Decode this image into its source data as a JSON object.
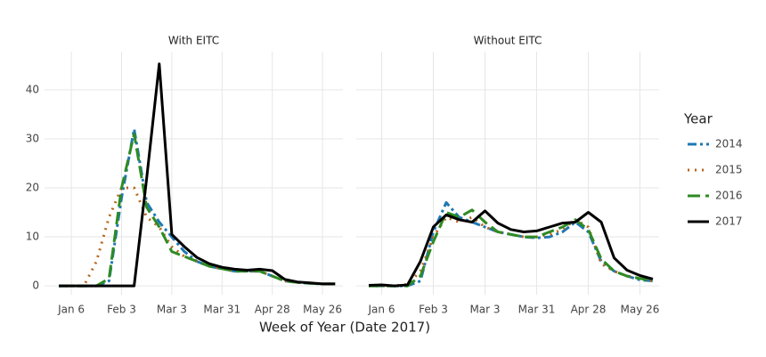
{
  "chart_data": [
    {
      "type": "line",
      "title": "With EITC",
      "categories": [
        null,
        "Jan 6",
        null,
        null,
        null,
        "Feb 3",
        null,
        null,
        null,
        "Mar 3",
        null,
        null,
        null,
        "Mar 31",
        null,
        null,
        null,
        "Apr 28",
        null,
        null,
        null,
        "May 26",
        null
      ],
      "ylim": [
        -1.8,
        47.8
      ],
      "yticks": [
        0,
        10,
        20,
        30,
        40
      ],
      "grid": true,
      "xlabel": "Week of Year (Date 2017)",
      "legend": {
        "title": "Year",
        "position": "right"
      },
      "series": [
        {
          "name": "2014",
          "color": "#1f78b4",
          "dash": "dashdot",
          "values": [
            0,
            0,
            0,
            0,
            1,
            18,
            32,
            17,
            13,
            10,
            7,
            5,
            4,
            3.5,
            3,
            3,
            3,
            2,
            1,
            0.7,
            0.5,
            0.4,
            0.4
          ]
        },
        {
          "name": "2015",
          "color": "#b8651b",
          "dash": "dotted",
          "values": [
            0,
            0,
            0,
            5,
            14,
            20,
            20,
            14,
            12,
            8,
            6,
            5,
            4,
            3.5,
            3,
            3,
            3,
            2,
            1,
            0.7,
            0.5,
            0.4,
            0.4
          ]
        },
        {
          "name": "2016",
          "color": "#2e8b22",
          "dash": "dashed",
          "values": [
            0,
            0,
            0,
            0,
            1.5,
            20,
            31,
            16,
            12,
            7,
            6,
            5,
            4,
            3.5,
            3,
            3,
            3,
            2,
            1,
            0.7,
            0.5,
            0.4,
            0.4
          ]
        },
        {
          "name": "2017",
          "color": "#000000",
          "dash": "solid",
          "values": [
            0,
            0,
            0,
            0,
            0,
            0,
            0,
            22,
            45.3,
            10.5,
            8,
            5.8,
            4.5,
            3.8,
            3.4,
            3.2,
            3.4,
            3.1,
            1.3,
            0.8,
            0.6,
            0.4,
            0.4
          ]
        }
      ]
    },
    {
      "type": "line",
      "title": "Without EITC",
      "categories": [
        null,
        "Jan 6",
        null,
        null,
        null,
        "Feb 3",
        null,
        null,
        null,
        "Mar 3",
        null,
        null,
        null,
        "Mar 31",
        null,
        null,
        null,
        "Apr 28",
        null,
        null,
        null,
        "May 26",
        null
      ],
      "ylim": [
        -1.8,
        47.8
      ],
      "yticks": [
        0,
        10,
        20,
        30,
        40
      ],
      "grid": true,
      "series": [
        {
          "name": "2014",
          "color": "#1f78b4",
          "dash": "dashdot",
          "values": [
            0,
            0,
            0,
            0,
            1,
            11,
            17,
            14,
            13,
            12,
            11,
            10.5,
            10,
            9.8,
            10,
            11,
            13,
            11,
            5,
            3,
            2,
            1.2,
            1
          ]
        },
        {
          "name": "2015",
          "color": "#b8651b",
          "dash": "dotted",
          "values": [
            0,
            0,
            0,
            0.3,
            3,
            10,
            14,
            13,
            14,
            12,
            11,
            10.5,
            10,
            10,
            10.5,
            11.5,
            13.5,
            12,
            4.5,
            3,
            2,
            1.5,
            1
          ]
        },
        {
          "name": "2016",
          "color": "#2e8b22",
          "dash": "dashed",
          "values": [
            0,
            0,
            0,
            0,
            2,
            9,
            15,
            14,
            15.5,
            13,
            11,
            10.5,
            10,
            10,
            11,
            12,
            13.5,
            11.5,
            5.5,
            3,
            2,
            1.5,
            1
          ]
        },
        {
          "name": "2017",
          "color": "#000000",
          "dash": "solid",
          "values": [
            0.1,
            0.2,
            0,
            0.2,
            5,
            12,
            14.5,
            13.5,
            13,
            15.3,
            12.8,
            11.5,
            11,
            11.2,
            12,
            12.8,
            13,
            15,
            13,
            5.7,
            3.2,
            2.1,
            1.4
          ]
        }
      ]
    }
  ]
}
